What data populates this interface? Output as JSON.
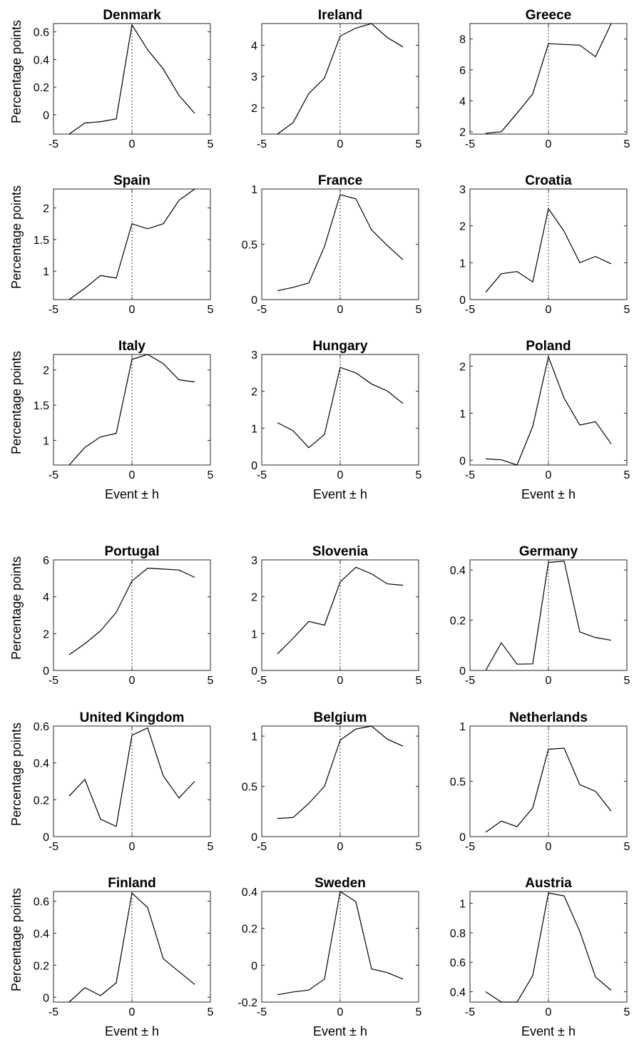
{
  "chart_data": [
    {
      "type": "line",
      "title": "Denmark",
      "ylabel": "Percentage points",
      "xlabel": "",
      "xlim": [
        -5,
        5
      ],
      "ylim": [
        -0.14,
        0.66
      ],
      "xticks": [
        "-5",
        "0",
        "5"
      ],
      "yticks": [
        {
          "v": 0,
          "label": "0"
        },
        {
          "v": 0.2,
          "label": "0.2"
        },
        {
          "v": 0.4,
          "label": "0.4"
        },
        {
          "v": 0.6,
          "label": "0.6"
        }
      ],
      "x": [
        -4,
        -3,
        -2,
        -1,
        0,
        1,
        2,
        3,
        4
      ],
      "y": [
        -0.14,
        -0.06,
        -0.05,
        -0.03,
        0.65,
        0.47,
        0.33,
        0.14,
        0.01
      ]
    },
    {
      "type": "line",
      "title": "Ireland",
      "ylabel": "",
      "xlabel": "",
      "xlim": [
        -5,
        5
      ],
      "ylim": [
        1.15,
        4.7
      ],
      "xticks": [
        "-5",
        "0",
        "5"
      ],
      "yticks": [
        {
          "v": 2,
          "label": "2"
        },
        {
          "v": 3,
          "label": "3"
        },
        {
          "v": 4,
          "label": "4"
        }
      ],
      "x": [
        -4,
        -3,
        -2,
        -1,
        0,
        1,
        2,
        3,
        4
      ],
      "y": [
        1.15,
        1.52,
        2.45,
        2.95,
        4.3,
        4.55,
        4.7,
        4.25,
        3.95
      ]
    },
    {
      "type": "line",
      "title": "Greece",
      "ylabel": "",
      "xlabel": "",
      "xlim": [
        -5,
        5
      ],
      "ylim": [
        1.85,
        9
      ],
      "xticks": [
        "-5",
        "0",
        "5"
      ],
      "yticks": [
        {
          "v": 2,
          "label": "2"
        },
        {
          "v": 4,
          "label": "4"
        },
        {
          "v": 6,
          "label": "6"
        },
        {
          "v": 8,
          "label": "8"
        }
      ],
      "x": [
        -4,
        -3,
        -2,
        -1,
        0,
        1,
        2,
        3,
        4
      ],
      "y": [
        1.9,
        2.0,
        3.2,
        4.45,
        7.7,
        7.65,
        7.6,
        6.85,
        9.0
      ]
    },
    {
      "type": "line",
      "title": "Spain",
      "ylabel": "Percentage points",
      "xlabel": "",
      "xlim": [
        -5,
        5
      ],
      "ylim": [
        0.55,
        2.3
      ],
      "xticks": [
        "-5",
        "0",
        "5"
      ],
      "yticks": [
        {
          "v": 1,
          "label": "1"
        },
        {
          "v": 1.5,
          "label": "1.5"
        },
        {
          "v": 2,
          "label": "2"
        }
      ],
      "x": [
        -4,
        -3,
        -2,
        -1,
        0,
        1,
        2,
        3,
        4
      ],
      "y": [
        0.55,
        0.73,
        0.93,
        0.89,
        1.75,
        1.67,
        1.75,
        2.12,
        2.3
      ]
    },
    {
      "type": "line",
      "title": "France",
      "ylabel": "",
      "xlabel": "",
      "xlim": [
        -5,
        5
      ],
      "ylim": [
        0,
        1
      ],
      "xticks": [
        "-5",
        "0",
        "5"
      ],
      "yticks": [
        {
          "v": 0,
          "label": "0"
        },
        {
          "v": 0.5,
          "label": "0.5"
        },
        {
          "v": 1,
          "label": "1"
        }
      ],
      "x": [
        -4,
        -3,
        -2,
        -1,
        0,
        1,
        2,
        3,
        4
      ],
      "y": [
        0.08,
        0.11,
        0.15,
        0.48,
        0.95,
        0.91,
        0.63,
        0.49,
        0.36
      ]
    },
    {
      "type": "line",
      "title": "Croatia",
      "ylabel": "",
      "xlabel": "",
      "xlim": [
        -5,
        5
      ],
      "ylim": [
        0,
        3
      ],
      "xticks": [
        "-5",
        "0",
        "5"
      ],
      "yticks": [
        {
          "v": 0,
          "label": "0"
        },
        {
          "v": 1,
          "label": "1"
        },
        {
          "v": 2,
          "label": "2"
        },
        {
          "v": 3,
          "label": "3"
        }
      ],
      "x": [
        -4,
        -3,
        -2,
        -1,
        0,
        1,
        2,
        3,
        4
      ],
      "y": [
        0.2,
        0.7,
        0.76,
        0.48,
        2.47,
        1.85,
        1.0,
        1.17,
        0.97
      ]
    },
    {
      "type": "line",
      "title": "Italy",
      "ylabel": "Percentage points",
      "xlabel": "Event ± h",
      "xlim": [
        -5,
        5
      ],
      "ylim": [
        0.65,
        2.22
      ],
      "xticks": [
        "-5",
        "0",
        "5"
      ],
      "yticks": [
        {
          "v": 1,
          "label": "1"
        },
        {
          "v": 1.5,
          "label": "1.5"
        },
        {
          "v": 2,
          "label": "2"
        }
      ],
      "x": [
        -4,
        -3,
        -2,
        -1,
        0,
        1,
        2,
        3,
        4
      ],
      "y": [
        0.65,
        0.9,
        1.05,
        1.1,
        2.15,
        2.22,
        2.09,
        1.86,
        1.83
      ]
    },
    {
      "type": "line",
      "title": "Hungary",
      "ylabel": "",
      "xlabel": "Event ± h",
      "xlim": [
        -5,
        5
      ],
      "ylim": [
        0,
        3
      ],
      "xticks": [
        "-5",
        "0",
        "5"
      ],
      "yticks": [
        {
          "v": 0,
          "label": "0"
        },
        {
          "v": 1,
          "label": "1"
        },
        {
          "v": 2,
          "label": "2"
        },
        {
          "v": 3,
          "label": "3"
        }
      ],
      "x": [
        -4,
        -3,
        -2,
        -1,
        0,
        1,
        2,
        3,
        4
      ],
      "y": [
        1.15,
        0.93,
        0.47,
        0.83,
        2.65,
        2.5,
        2.2,
        2.01,
        1.67
      ]
    },
    {
      "type": "line",
      "title": "Poland",
      "ylabel": "",
      "xlabel": "Event ± h",
      "xlim": [
        -5,
        5
      ],
      "ylim": [
        -0.1,
        2.25
      ],
      "xticks": [
        "-5",
        "0",
        "5"
      ],
      "yticks": [
        {
          "v": 0,
          "label": "0"
        },
        {
          "v": 1,
          "label": "1"
        },
        {
          "v": 2,
          "label": "2"
        }
      ],
      "x": [
        -4,
        -3,
        -2,
        -1,
        0,
        1,
        2,
        3,
        4
      ],
      "y": [
        0.03,
        0.01,
        -0.1,
        0.72,
        2.2,
        1.32,
        0.75,
        0.82,
        0.35
      ]
    },
    {
      "type": "line",
      "title": "Portugal",
      "ylabel": "Percentage points",
      "xlabel": "",
      "xlim": [
        -5,
        5
      ],
      "ylim": [
        0,
        6
      ],
      "xticks": [
        "-5",
        "0",
        "5"
      ],
      "yticks": [
        {
          "v": 0,
          "label": "0"
        },
        {
          "v": 2,
          "label": "2"
        },
        {
          "v": 4,
          "label": "4"
        },
        {
          "v": 6,
          "label": "6"
        }
      ],
      "x": [
        -4,
        -3,
        -2,
        -1,
        0,
        1,
        2,
        3,
        4
      ],
      "y": [
        0.85,
        1.45,
        2.15,
        3.15,
        4.85,
        5.55,
        5.5,
        5.45,
        5.05
      ]
    },
    {
      "type": "line",
      "title": "Slovenia",
      "ylabel": "",
      "xlabel": "",
      "xlim": [
        -5,
        5
      ],
      "ylim": [
        0,
        3
      ],
      "xticks": [
        "-5",
        "0",
        "5"
      ],
      "yticks": [
        {
          "v": 0,
          "label": "0"
        },
        {
          "v": 1,
          "label": "1"
        },
        {
          "v": 2,
          "label": "2"
        },
        {
          "v": 3,
          "label": "3"
        }
      ],
      "x": [
        -4,
        -3,
        -2,
        -1,
        0,
        1,
        2,
        3,
        4
      ],
      "y": [
        0.45,
        0.87,
        1.33,
        1.23,
        2.4,
        2.8,
        2.62,
        2.35,
        2.31
      ]
    },
    {
      "type": "line",
      "title": "Germany",
      "ylabel": "",
      "xlabel": "",
      "xlim": [
        -5,
        5
      ],
      "ylim": [
        0,
        0.44
      ],
      "xticks": [
        "-5",
        "0",
        "5"
      ],
      "yticks": [
        {
          "v": 0,
          "label": "0"
        },
        {
          "v": 0.2,
          "label": "0.2"
        },
        {
          "v": 0.4,
          "label": "0.4"
        }
      ],
      "x": [
        -4,
        -3,
        -2,
        -1,
        0,
        1,
        2,
        3,
        4
      ],
      "y": [
        0.0,
        0.11,
        0.025,
        0.026,
        0.43,
        0.435,
        0.153,
        0.131,
        0.12
      ]
    },
    {
      "type": "line",
      "title": "United Kingdom",
      "ylabel": "Percentage points",
      "xlabel": "",
      "xlim": [
        -5,
        5
      ],
      "ylim": [
        0,
        0.6
      ],
      "xticks": [
        "-5",
        "0",
        "5"
      ],
      "yticks": [
        {
          "v": 0,
          "label": "0"
        },
        {
          "v": 0.2,
          "label": "0.2"
        },
        {
          "v": 0.4,
          "label": "0.4"
        },
        {
          "v": 0.6,
          "label": "0.6"
        }
      ],
      "x": [
        -4,
        -3,
        -2,
        -1,
        0,
        1,
        2,
        3,
        4
      ],
      "y": [
        0.22,
        0.31,
        0.095,
        0.055,
        0.55,
        0.59,
        0.33,
        0.21,
        0.3
      ]
    },
    {
      "type": "line",
      "title": "Belgium",
      "ylabel": "",
      "xlabel": "",
      "xlim": [
        -5,
        5
      ],
      "ylim": [
        0,
        1.1
      ],
      "xticks": [
        "-5",
        "0",
        "5"
      ],
      "yticks": [
        {
          "v": 0,
          "label": "0"
        },
        {
          "v": 0.5,
          "label": "0.5"
        },
        {
          "v": 1,
          "label": "1"
        }
      ],
      "x": [
        -4,
        -3,
        -2,
        -1,
        0,
        1,
        2,
        3,
        4
      ],
      "y": [
        0.18,
        0.19,
        0.33,
        0.5,
        0.96,
        1.07,
        1.1,
        0.97,
        0.9
      ]
    },
    {
      "type": "line",
      "title": "Netherlands",
      "ylabel": "",
      "xlabel": "",
      "xlim": [
        -5,
        5
      ],
      "ylim": [
        0,
        1
      ],
      "xticks": [
        "-5",
        "0",
        "5"
      ],
      "yticks": [
        {
          "v": 0,
          "label": "0"
        },
        {
          "v": 0.5,
          "label": "0.5"
        },
        {
          "v": 1,
          "label": "1"
        }
      ],
      "x": [
        -4,
        -3,
        -2,
        -1,
        0,
        1,
        2,
        3,
        4
      ],
      "y": [
        0.04,
        0.14,
        0.09,
        0.26,
        0.79,
        0.8,
        0.47,
        0.41,
        0.23
      ]
    },
    {
      "type": "line",
      "title": "Finland",
      "ylabel": "Percentage points",
      "xlabel": "Event ± h",
      "xlim": [
        -5,
        5
      ],
      "ylim": [
        -0.03,
        0.66
      ],
      "xticks": [
        "-5",
        "0",
        "5"
      ],
      "yticks": [
        {
          "v": 0,
          "label": "0"
        },
        {
          "v": 0.2,
          "label": "0.2"
        },
        {
          "v": 0.4,
          "label": "0.4"
        },
        {
          "v": 0.6,
          "label": "0.6"
        }
      ],
      "x": [
        -4,
        -3,
        -2,
        -1,
        0,
        1,
        2,
        3,
        4
      ],
      "y": [
        -0.03,
        0.06,
        0.01,
        0.09,
        0.65,
        0.56,
        0.24,
        0.16,
        0.08
      ]
    },
    {
      "type": "line",
      "title": "Sweden",
      "ylabel": "",
      "xlabel": "Event ± h",
      "xlim": [
        -5,
        5
      ],
      "ylim": [
        -0.2,
        0.4
      ],
      "xticks": [
        "-5",
        "0",
        "5"
      ],
      "yticks": [
        {
          "v": -0.2,
          "label": "-0.2"
        },
        {
          "v": 0,
          "label": "0"
        },
        {
          "v": 0.2,
          "label": "0.2"
        },
        {
          "v": 0.4,
          "label": "0.4"
        }
      ],
      "x": [
        -4,
        -3,
        -2,
        -1,
        0,
        1,
        2,
        3,
        4
      ],
      "y": [
        -0.16,
        -0.145,
        -0.135,
        -0.075,
        0.4,
        0.345,
        -0.02,
        -0.04,
        -0.075
      ]
    },
    {
      "type": "line",
      "title": "Austria",
      "ylabel": "",
      "xlabel": "Event ± h",
      "xlim": [
        -5,
        5
      ],
      "ylim": [
        0.33,
        1.08
      ],
      "xticks": [
        "-5",
        "0",
        "5"
      ],
      "yticks": [
        {
          "v": 0.4,
          "label": "0.4"
        },
        {
          "v": 0.6,
          "label": "0.6"
        },
        {
          "v": 0.8,
          "label": "0.8"
        },
        {
          "v": 1,
          "label": "1"
        }
      ],
      "x": [
        -4,
        -3,
        -2,
        -1,
        0,
        1,
        2,
        3,
        4
      ],
      "y": [
        0.4,
        0.33,
        0.33,
        0.51,
        1.07,
        1.05,
        0.81,
        0.5,
        0.41
      ]
    }
  ]
}
